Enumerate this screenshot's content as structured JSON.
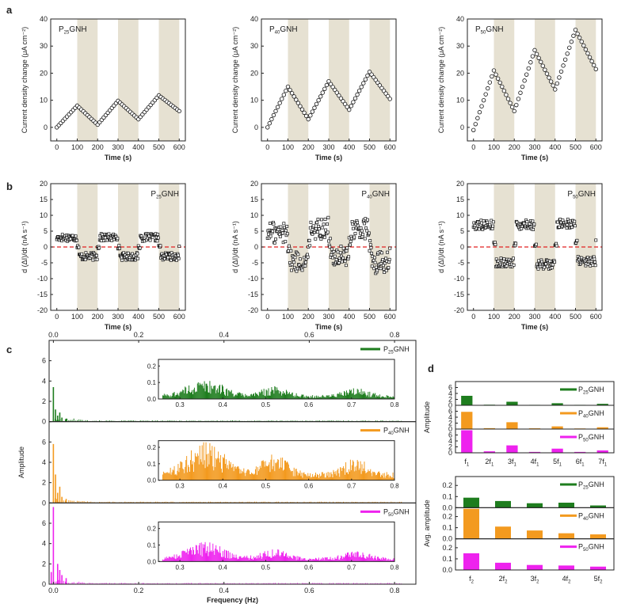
{
  "colors": {
    "g": "#1e7d1e",
    "o": "#f39a1f",
    "m": "#ee22ee",
    "shade": "#e6e1d2",
    "ref": "#e22222",
    "axis": "#222222"
  },
  "chart_data": [
    {
      "id": "a",
      "type": "scatter",
      "panel_label": "a",
      "xlabel": "Time (s)",
      "ylabel": "Current density change (μA cm⁻²)",
      "xlim": [
        -30,
        630
      ],
      "ylim": [
        -5,
        40
      ],
      "xticks": [
        0,
        100,
        200,
        300,
        400,
        500,
        600
      ],
      "yticks": [
        0,
        10,
        20,
        30,
        40
      ],
      "shaded_intervals": [
        [
          100,
          200
        ],
        [
          300,
          400
        ],
        [
          500,
          600
        ]
      ],
      "plots": [
        {
          "name": "P25GNH",
          "nodes": [
            [
              0,
              0
            ],
            [
              100,
              8
            ],
            [
              200,
              1
            ],
            [
              300,
              9.8
            ],
            [
              400,
              3
            ],
            [
              500,
              11.8
            ],
            [
              600,
              6
            ]
          ]
        },
        {
          "name": "P40GNH",
          "nodes": [
            [
              0,
              0
            ],
            [
              100,
              15
            ],
            [
              200,
              3
            ],
            [
              300,
              17
            ],
            [
              400,
              6.5
            ],
            [
              500,
              20.5
            ],
            [
              600,
              10.5
            ]
          ]
        },
        {
          "name": "P50GNH",
          "nodes": [
            [
              0,
              -1
            ],
            [
              100,
              21
            ],
            [
              200,
              6
            ],
            [
              300,
              28.5
            ],
            [
              400,
              14
            ],
            [
              500,
              36
            ],
            [
              600,
              21.5
            ]
          ]
        }
      ]
    },
    {
      "id": "b",
      "type": "scatter",
      "panel_label": "b",
      "xlabel": "Time (s)",
      "ylabel": "d (ΔI)/dt (nA s⁻¹)",
      "xlim": [
        -30,
        630
      ],
      "ylim": [
        -20,
        20
      ],
      "xticks": [
        0,
        100,
        200,
        300,
        400,
        500,
        600
      ],
      "yticks": [
        -20,
        -15,
        -10,
        -5,
        0,
        5,
        10,
        15,
        20
      ],
      "shaded_intervals": [
        [
          100,
          200
        ],
        [
          300,
          400
        ],
        [
          500,
          600
        ]
      ],
      "reference_line_y": 0,
      "plots": [
        {
          "name": "P25GNH",
          "levels": [
            3,
            -3,
            3,
            -3,
            3,
            -3
          ],
          "noise": 1.2
        },
        {
          "name": "P40GNH",
          "levels": [
            4.5,
            -4.5,
            6,
            -3,
            5.5,
            -5
          ],
          "noise": 3.5
        },
        {
          "name": "P50GNH",
          "levels": [
            7,
            -5,
            7,
            -5.5,
            7.5,
            -4.5
          ],
          "noise": 1.5
        }
      ]
    },
    {
      "id": "c",
      "type": "bar",
      "panel_label": "c",
      "xlabel": "Frequency (Hz)",
      "ylabel": "Amplitude",
      "xlim": [
        -0.01,
        0.85
      ],
      "ylim": [
        0,
        8
      ],
      "xticks": [
        0.0,
        0.2,
        0.4,
        0.6,
        0.8
      ],
      "yticks": [
        0,
        2,
        4,
        6
      ],
      "inset_xlim": [
        0.25,
        0.8
      ],
      "inset_xticks": [
        0.3,
        0.4,
        0.5,
        0.6,
        0.7,
        0.8
      ],
      "inset_ylim": [
        0,
        0.24
      ],
      "inset_yticks": [
        0.0,
        0.1,
        0.2
      ],
      "series": [
        {
          "name": "P25GNH",
          "color": "g",
          "peaks": [
            [
              0.0,
              3.4
            ],
            [
              0.005,
              1.2
            ],
            [
              0.01,
              0.6
            ],
            [
              0.015,
              0.9
            ],
            [
              0.02,
              0.4
            ],
            [
              0.03,
              0.3
            ]
          ],
          "inset_level": 0.08
        },
        {
          "name": "P40GNH",
          "color": "o",
          "peaks": [
            [
              0.0,
              5.8
            ],
            [
              0.005,
              2.8
            ],
            [
              0.01,
              1.0
            ],
            [
              0.015,
              1.6
            ],
            [
              0.02,
              0.6
            ],
            [
              0.03,
              0.4
            ]
          ],
          "inset_level": 0.16
        },
        {
          "name": "P50GNH",
          "color": "m",
          "peaks": [
            [
              0.0,
              7.6
            ],
            [
              -0.005,
              1.2
            ],
            [
              0.01,
              2.0
            ],
            [
              0.015,
              1.4
            ],
            [
              0.02,
              0.9
            ],
            [
              0.03,
              0.6
            ]
          ],
          "inset_level": 0.08
        }
      ]
    },
    {
      "id": "d-top",
      "type": "bar",
      "panel_label": "d",
      "ylabel": "Amplitude",
      "ylim": [
        0,
        8
      ],
      "yticks": [
        0,
        2,
        4,
        6
      ],
      "categories": [
        "f1",
        "2f1",
        "3f1",
        "4f1",
        "5f1",
        "6f1",
        "7f1"
      ],
      "series": [
        {
          "name": "P25GNH",
          "color": "g",
          "values": [
            3.2,
            0.2,
            1.2,
            0.15,
            0.7,
            0.15,
            0.5
          ]
        },
        {
          "name": "P40GNH",
          "color": "o",
          "values": [
            5.8,
            0.3,
            2.3,
            0.25,
            0.9,
            0.2,
            0.6
          ]
        },
        {
          "name": "P50GNH",
          "color": "m",
          "values": [
            7.6,
            0.5,
            2.5,
            0.3,
            1.4,
            0.3,
            0.8
          ]
        }
      ]
    },
    {
      "id": "d-bottom",
      "type": "bar",
      "ylabel": "Avg. amplitude",
      "ylim": [
        0,
        0.28
      ],
      "yticks": [
        0.0,
        0.1,
        0.2
      ],
      "categories": [
        "f2",
        "2f2",
        "3f2",
        "4f2",
        "5f2"
      ],
      "series": [
        {
          "name": "P25GNH",
          "color": "g",
          "values": [
            0.09,
            0.06,
            0.04,
            0.045,
            0.02
          ]
        },
        {
          "name": "P40GNH",
          "color": "o",
          "values": [
            0.27,
            0.11,
            0.075,
            0.05,
            0.04
          ]
        },
        {
          "name": "P50GNH",
          "color": "m",
          "values": [
            0.15,
            0.065,
            0.045,
            0.04,
            0.03
          ]
        }
      ]
    }
  ]
}
